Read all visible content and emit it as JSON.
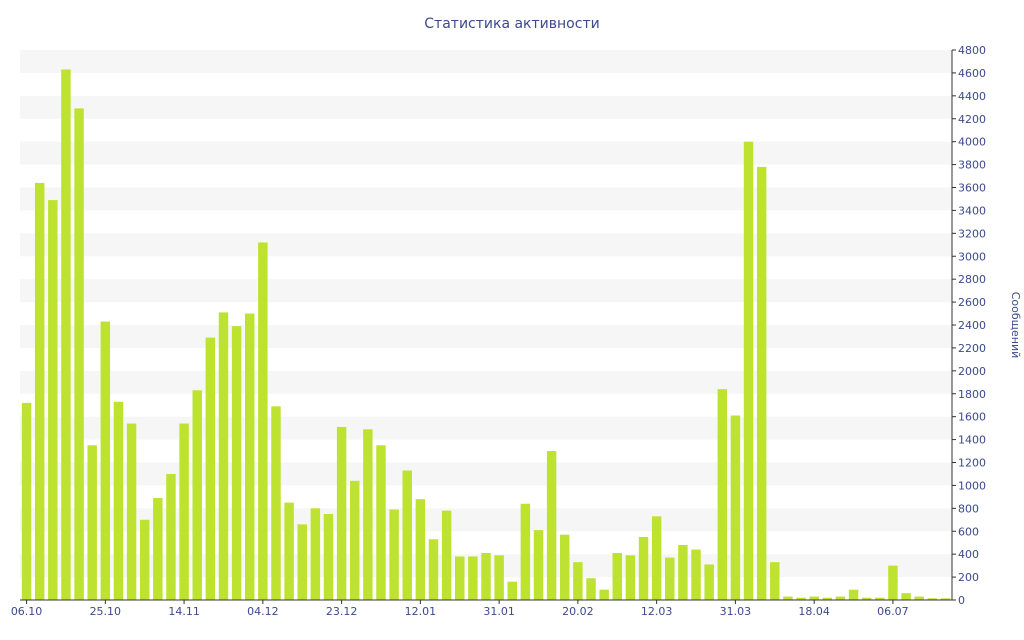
{
  "chart_data": {
    "type": "bar",
    "title": "Статистика активности",
    "ylabel": "Сообщений",
    "xlabel": "",
    "ylim": [
      0,
      4800
    ],
    "y_ticks": [
      0,
      200,
      400,
      600,
      800,
      1000,
      1200,
      1400,
      1600,
      1800,
      2000,
      2200,
      2400,
      2600,
      2800,
      3000,
      3200,
      3400,
      3600,
      3800,
      4000,
      4200,
      4400,
      4600,
      4800
    ],
    "y_axis_position": "right",
    "grid": "alternating horizontal bands",
    "x_tick_labels": [
      {
        "label": "06.10",
        "index": 0
      },
      {
        "label": "25.10",
        "index": 6
      },
      {
        "label": "14.11",
        "index": 12
      },
      {
        "label": "04.12",
        "index": 18
      },
      {
        "label": "23.12",
        "index": 24
      },
      {
        "label": "12.01",
        "index": 30
      },
      {
        "label": "31.01",
        "index": 36
      },
      {
        "label": "20.02",
        "index": 42
      },
      {
        "label": "12.03",
        "index": 48
      },
      {
        "label": "31.03",
        "index": 54
      },
      {
        "label": "18.04",
        "index": 60
      },
      {
        "label": "06.07",
        "index": 66
      }
    ],
    "values": [
      1720,
      3640,
      3490,
      4630,
      4290,
      1350,
      2430,
      1730,
      1540,
      700,
      890,
      1100,
      1540,
      1830,
      2290,
      2510,
      2390,
      2500,
      3120,
      1690,
      850,
      660,
      800,
      750,
      1510,
      1040,
      1490,
      1350,
      790,
      1130,
      880,
      530,
      780,
      380,
      380,
      410,
      390,
      160,
      840,
      610,
      1300,
      570,
      330,
      190,
      90,
      410,
      390,
      550,
      730,
      370,
      480,
      440,
      310,
      1840,
      1610,
      4000,
      3780,
      330,
      30,
      20,
      30,
      20,
      30,
      90,
      20,
      20,
      300,
      60,
      30,
      15,
      15
    ],
    "bar_color": "#bde22f",
    "text_color": "#3b4a8c"
  }
}
